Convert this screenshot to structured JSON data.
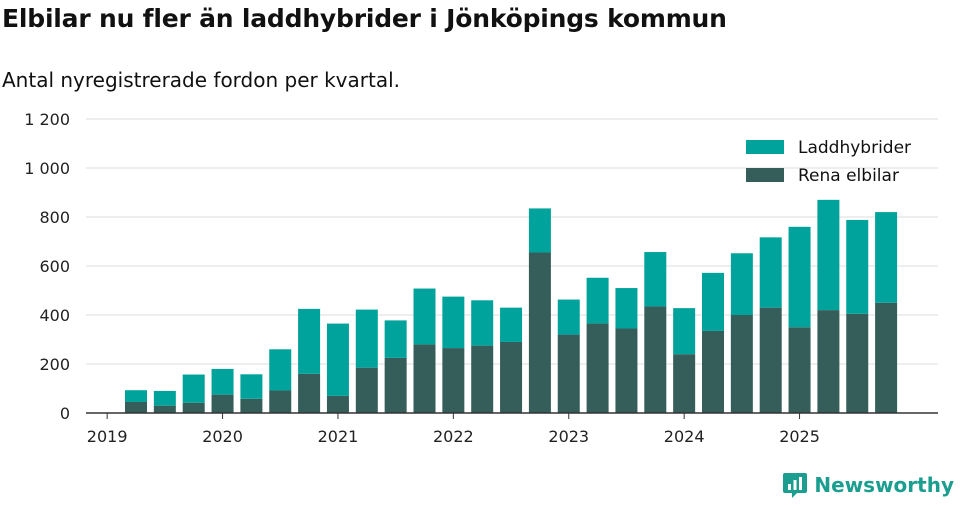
{
  "header": {
    "title": "Elbilar nu fler än laddhybrider i Jönköpings kommun",
    "subtitle": "Antal nyregistrerade fordon per kvartal."
  },
  "brand": {
    "name": "Newsworthy",
    "icon": "newsworthy-logo-icon"
  },
  "colors": {
    "phev": "#00a39b",
    "bev": "#355e5a",
    "grid": "#dddddd",
    "axis": "#333333",
    "brand": "#1b9e8f"
  },
  "chart_data": {
    "type": "bar",
    "stacked": true,
    "xlabel": "",
    "ylabel": "",
    "ylim": [
      0,
      1200
    ],
    "yticks": [
      0,
      200,
      400,
      600,
      800,
      1000,
      1200
    ],
    "ytick_labels": [
      "0",
      "200",
      "400",
      "600",
      "800",
      "1 000",
      "1 200"
    ],
    "xtick_labels": [
      "2019",
      "2020",
      "2021",
      "2022",
      "2023",
      "2024",
      "2025"
    ],
    "xtick_positions": [
      0,
      4,
      8,
      12,
      16,
      20,
      24
    ],
    "categories": [
      "2019 Q2",
      "2019 Q3",
      "2019 Q4",
      "2020 Q1",
      "2020 Q2",
      "2020 Q3",
      "2020 Q4",
      "2021 Q1",
      "2021 Q2",
      "2021 Q3",
      "2021 Q4",
      "2022 Q1",
      "2022 Q2",
      "2022 Q3",
      "2022 Q4",
      "2023 Q1",
      "2023 Q2",
      "2023 Q3",
      "2023 Q4",
      "2024 Q1",
      "2024 Q2",
      "2024 Q3",
      "2024 Q4",
      "2025 Q1",
      "2025 Q2",
      "2025 Q3",
      "2025 Q4"
    ],
    "series": [
      {
        "name": "Rena elbilar",
        "key": "bev",
        "values": [
          45,
          30,
          42,
          75,
          58,
          92,
          160,
          70,
          185,
          225,
          280,
          265,
          275,
          290,
          655,
          320,
          365,
          345,
          435,
          240,
          335,
          400,
          430,
          350,
          420,
          405,
          450
        ]
      },
      {
        "name": "Laddhybrider",
        "key": "phev",
        "values": [
          48,
          60,
          115,
          105,
          100,
          168,
          265,
          295,
          237,
          153,
          228,
          210,
          185,
          140,
          180,
          143,
          187,
          165,
          222,
          188,
          237,
          252,
          287,
          410,
          450,
          383,
          370
        ]
      }
    ],
    "legend": [
      {
        "label": "Laddhybrider",
        "key": "phev"
      },
      {
        "label": "Rena elbilar",
        "key": "bev"
      }
    ],
    "legend_position": "top-right",
    "grid": true
  }
}
